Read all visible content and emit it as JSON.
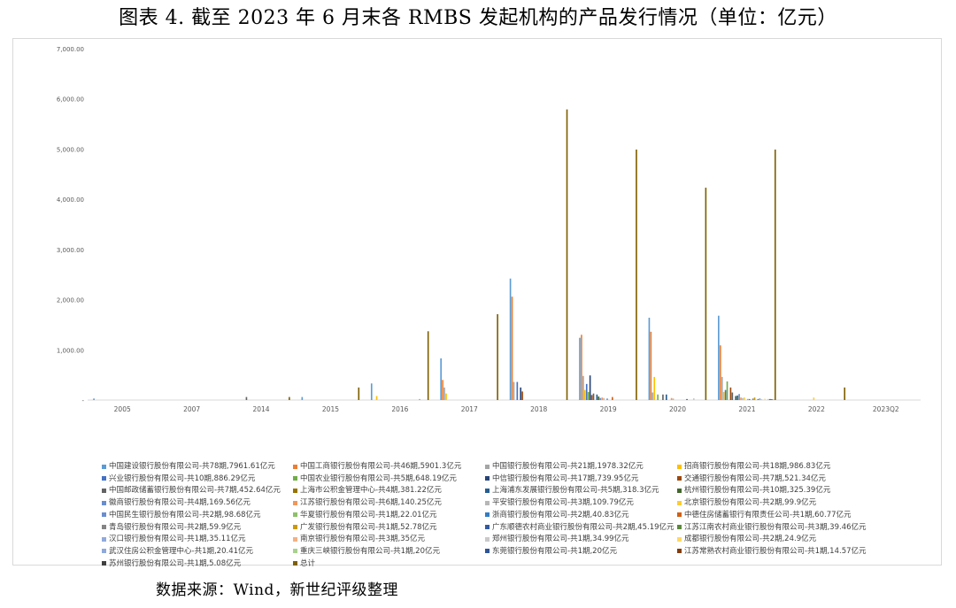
{
  "figure": {
    "title": "图表 4.   截至 2023 年 6 月末各 RMBS 发起机构的产品发行情况（单位：亿元）",
    "source": "数据来源：Wind，新世纪评级整理"
  },
  "chart_data": {
    "type": "bar",
    "ylim": [
      0,
      7000
    ],
    "yticks": [
      "7,000.00",
      "6,000.00",
      "5,000.00",
      "4,000.00",
      "3,000.00",
      "2,000.00",
      "1,000.00",
      "-"
    ],
    "ytick_values": [
      7000,
      6000,
      5000,
      4000,
      3000,
      2000,
      1000,
      0
    ],
    "categories": [
      "2005",
      "2007",
      "2014",
      "2015",
      "2016",
      "2017",
      "2018",
      "2019",
      "2020",
      "2021",
      "2022",
      "2023Q2"
    ],
    "grid": false,
    "legend_position": "bottom",
    "series": [
      {
        "name": "中国建设银行股份有限公司-共78期,7961.61亿元",
        "color": "#5b9bd5",
        "values": [
          30,
          0,
          0,
          60,
          330,
          830,
          2420,
          1240,
          1640,
          1680,
          0,
          0
        ]
      },
      {
        "name": "中国工商银行股份有限公司-共46期,5901.3亿元",
        "color": "#ed7d31",
        "values": [
          0,
          0,
          0,
          0,
          0,
          400,
          2060,
          1300,
          1360,
          1090,
          0,
          0
        ]
      },
      {
        "name": "中国银行股份有限公司-共21期,1978.32亿元",
        "color": "#a5a5a5",
        "values": [
          0,
          0,
          0,
          0,
          0,
          250,
          360,
          480,
          150,
          460,
          0,
          0
        ]
      },
      {
        "name": "招商银行股份有限公司-共18期,986.83亿元",
        "color": "#ffc000",
        "values": [
          0,
          0,
          0,
          0,
          80,
          130,
          0,
          200,
          460,
          160,
          0,
          0
        ]
      },
      {
        "name": "兴业银行股份有限公司-共10期,886.29亿元",
        "color": "#4472c4",
        "values": [
          0,
          0,
          0,
          0,
          0,
          0,
          360,
          320,
          0,
          200,
          0,
          0
        ]
      },
      {
        "name": "中国农业银行股份有限公司-共5期,648.19亿元",
        "color": "#70ad47",
        "values": [
          0,
          0,
          0,
          0,
          0,
          0,
          0,
          160,
          110,
          370,
          0,
          0
        ]
      },
      {
        "name": "中信银行股份有限公司-共17期,739.95亿元",
        "color": "#264478",
        "values": [
          0,
          0,
          0,
          0,
          0,
          0,
          250,
          490,
          0,
          0,
          0,
          0
        ]
      },
      {
        "name": "交通银行股份有限公司-共7期,521.34亿元",
        "color": "#9e480e",
        "values": [
          0,
          0,
          0,
          0,
          0,
          0,
          170,
          100,
          0,
          250,
          0,
          0
        ]
      },
      {
        "name": "中国邮政储蓄银行股份有限公司-共7期,452.64亿元",
        "color": "#636363",
        "values": [
          0,
          0,
          60,
          0,
          0,
          0,
          0,
          130,
          110,
          150,
          0,
          0
        ]
      },
      {
        "name": "上海市公积金管理中心-共4期,381.22亿元",
        "color": "#997300",
        "values": [
          0,
          0,
          0,
          0,
          0,
          0,
          0,
          0,
          0,
          0,
          0,
          0
        ]
      },
      {
        "name": "上海浦东发展银行股份有限公司-共5期,318.3亿元",
        "color": "#255e91",
        "values": [
          0,
          0,
          0,
          0,
          0,
          0,
          0,
          110,
          110,
          80,
          0,
          0
        ]
      },
      {
        "name": "杭州银行股份有限公司-共10期,325.39亿元",
        "color": "#43682b",
        "values": [
          0,
          0,
          0,
          0,
          0,
          0,
          0,
          70,
          0,
          90,
          0,
          0
        ]
      },
      {
        "name": "徽商银行股份有限公司-共4期,169.56亿元",
        "color": "#698ed0",
        "values": [
          0,
          0,
          0,
          0,
          0,
          0,
          0,
          40,
          0,
          120,
          0,
          0
        ]
      },
      {
        "name": "江苏银行股份有限公司-共6期,140.25亿元",
        "color": "#f1975a",
        "values": [
          0,
          0,
          0,
          0,
          0,
          0,
          0,
          50,
          40,
          50,
          0,
          0
        ]
      },
      {
        "name": "平安银行股份有限公司-共3期,109.79亿元",
        "color": "#b7b7b7",
        "values": [
          0,
          0,
          0,
          0,
          0,
          0,
          0,
          40,
          30,
          40,
          0,
          0
        ]
      },
      {
        "name": "北京银行股份有限公司-共2期,99.9亿元",
        "color": "#ffcd33",
        "values": [
          0,
          0,
          0,
          0,
          0,
          0,
          0,
          0,
          0,
          50,
          50,
          0
        ]
      },
      {
        "name": "中国民生银行股份有限公司-共2期,98.68亿元",
        "color": "#698ed0",
        "values": [
          0,
          0,
          0,
          0,
          0,
          0,
          0,
          30,
          0,
          0,
          0,
          0
        ]
      },
      {
        "name": "华夏银行股份有限公司-共1期,22.01亿元",
        "color": "#8cc168",
        "values": [
          0,
          0,
          0,
          0,
          0,
          0,
          0,
          0,
          0,
          22,
          0,
          0
        ]
      },
      {
        "name": "浙商银行股份有限公司-共2期,40.83亿元",
        "color": "#327dc2",
        "values": [
          0,
          0,
          0,
          0,
          0,
          0,
          0,
          0,
          0,
          20,
          0,
          0
        ]
      },
      {
        "name": "中德住房储蓄银行有限责任公司-共1期,60.77亿元",
        "color": "#d26012",
        "values": [
          0,
          0,
          0,
          0,
          0,
          0,
          0,
          60,
          0,
          0,
          0,
          0
        ]
      },
      {
        "name": "青岛银行股份有限公司-共2期,59.9亿元",
        "color": "#848484",
        "values": [
          0,
          0,
          0,
          0,
          0,
          0,
          0,
          0,
          0,
          30,
          0,
          0
        ]
      },
      {
        "name": "广发银行股份有限公司-共1期,52.78亿元",
        "color": "#cc9a00",
        "values": [
          0,
          0,
          0,
          0,
          0,
          0,
          0,
          0,
          0,
          50,
          0,
          0
        ]
      },
      {
        "name": "广东顺德农村商业银行股份有限公司-共2期,45.19亿元",
        "color": "#335aa1",
        "values": [
          0,
          0,
          0,
          0,
          0,
          0,
          0,
          0,
          20,
          0,
          0,
          0
        ]
      },
      {
        "name": "江苏江南农村商业银行股份有限公司-共3期,39.46亿元",
        "color": "#5a8a3a",
        "values": [
          0,
          0,
          0,
          0,
          0,
          0,
          0,
          0,
          0,
          20,
          0,
          0
        ]
      },
      {
        "name": "汉口银行股份有限公司-共1期,35.11亿元",
        "color": "#8faadc",
        "values": [
          0,
          0,
          0,
          0,
          0,
          0,
          0,
          0,
          0,
          35,
          0,
          0
        ]
      },
      {
        "name": "南京银行股份有限公司-共3期,35亿元",
        "color": "#f4b183",
        "values": [
          0,
          0,
          0,
          0,
          0,
          0,
          0,
          0,
          0,
          15,
          0,
          0
        ]
      },
      {
        "name": "郑州银行股份有限公司-共1期,34.99亿元",
        "color": "#c9c9c9",
        "values": [
          0,
          0,
          0,
          0,
          0,
          0,
          0,
          0,
          35,
          0,
          0,
          0
        ]
      },
      {
        "name": "成都银行股份有限公司-共2期,24.9亿元",
        "color": "#ffd966",
        "values": [
          0,
          0,
          0,
          0,
          0,
          0,
          0,
          0,
          0,
          25,
          0,
          0
        ]
      },
      {
        "name": "武汉住房公积金管理中心-共1期,20.41亿元",
        "color": "#8ea9db",
        "values": [
          0,
          0,
          0,
          0,
          20,
          0,
          0,
          0,
          0,
          0,
          0,
          0
        ]
      },
      {
        "name": "重庆三峡银行股份有限公司-共1期,20亿元",
        "color": "#a9d18e",
        "values": [
          0,
          0,
          0,
          0,
          0,
          0,
          0,
          0,
          0,
          20,
          0,
          0
        ]
      },
      {
        "name": "东莞银行股份有限公司-共1期,20亿元",
        "color": "#2f5597",
        "values": [
          0,
          0,
          0,
          0,
          0,
          0,
          0,
          0,
          0,
          20,
          0,
          0
        ]
      },
      {
        "name": "江苏常熟农村商业银行股份有限公司-共1期,14.57亿元",
        "color": "#843c0c",
        "values": [
          0,
          0,
          0,
          0,
          0,
          0,
          0,
          0,
          0,
          14.57,
          0,
          0
        ]
      },
      {
        "name": "苏州银行股份有限公司-共1期,5.08亿元",
        "color": "#404040",
        "values": [
          0,
          0,
          0,
          0,
          0,
          0,
          0,
          0,
          0,
          5.08,
          0,
          0
        ]
      },
      {
        "name": "总计",
        "color": "#7f6000",
        "values": [
          0,
          0,
          60,
          250,
          1370,
          1710,
          5790,
          4990,
          4230,
          4990,
          250,
          0
        ]
      }
    ]
  }
}
